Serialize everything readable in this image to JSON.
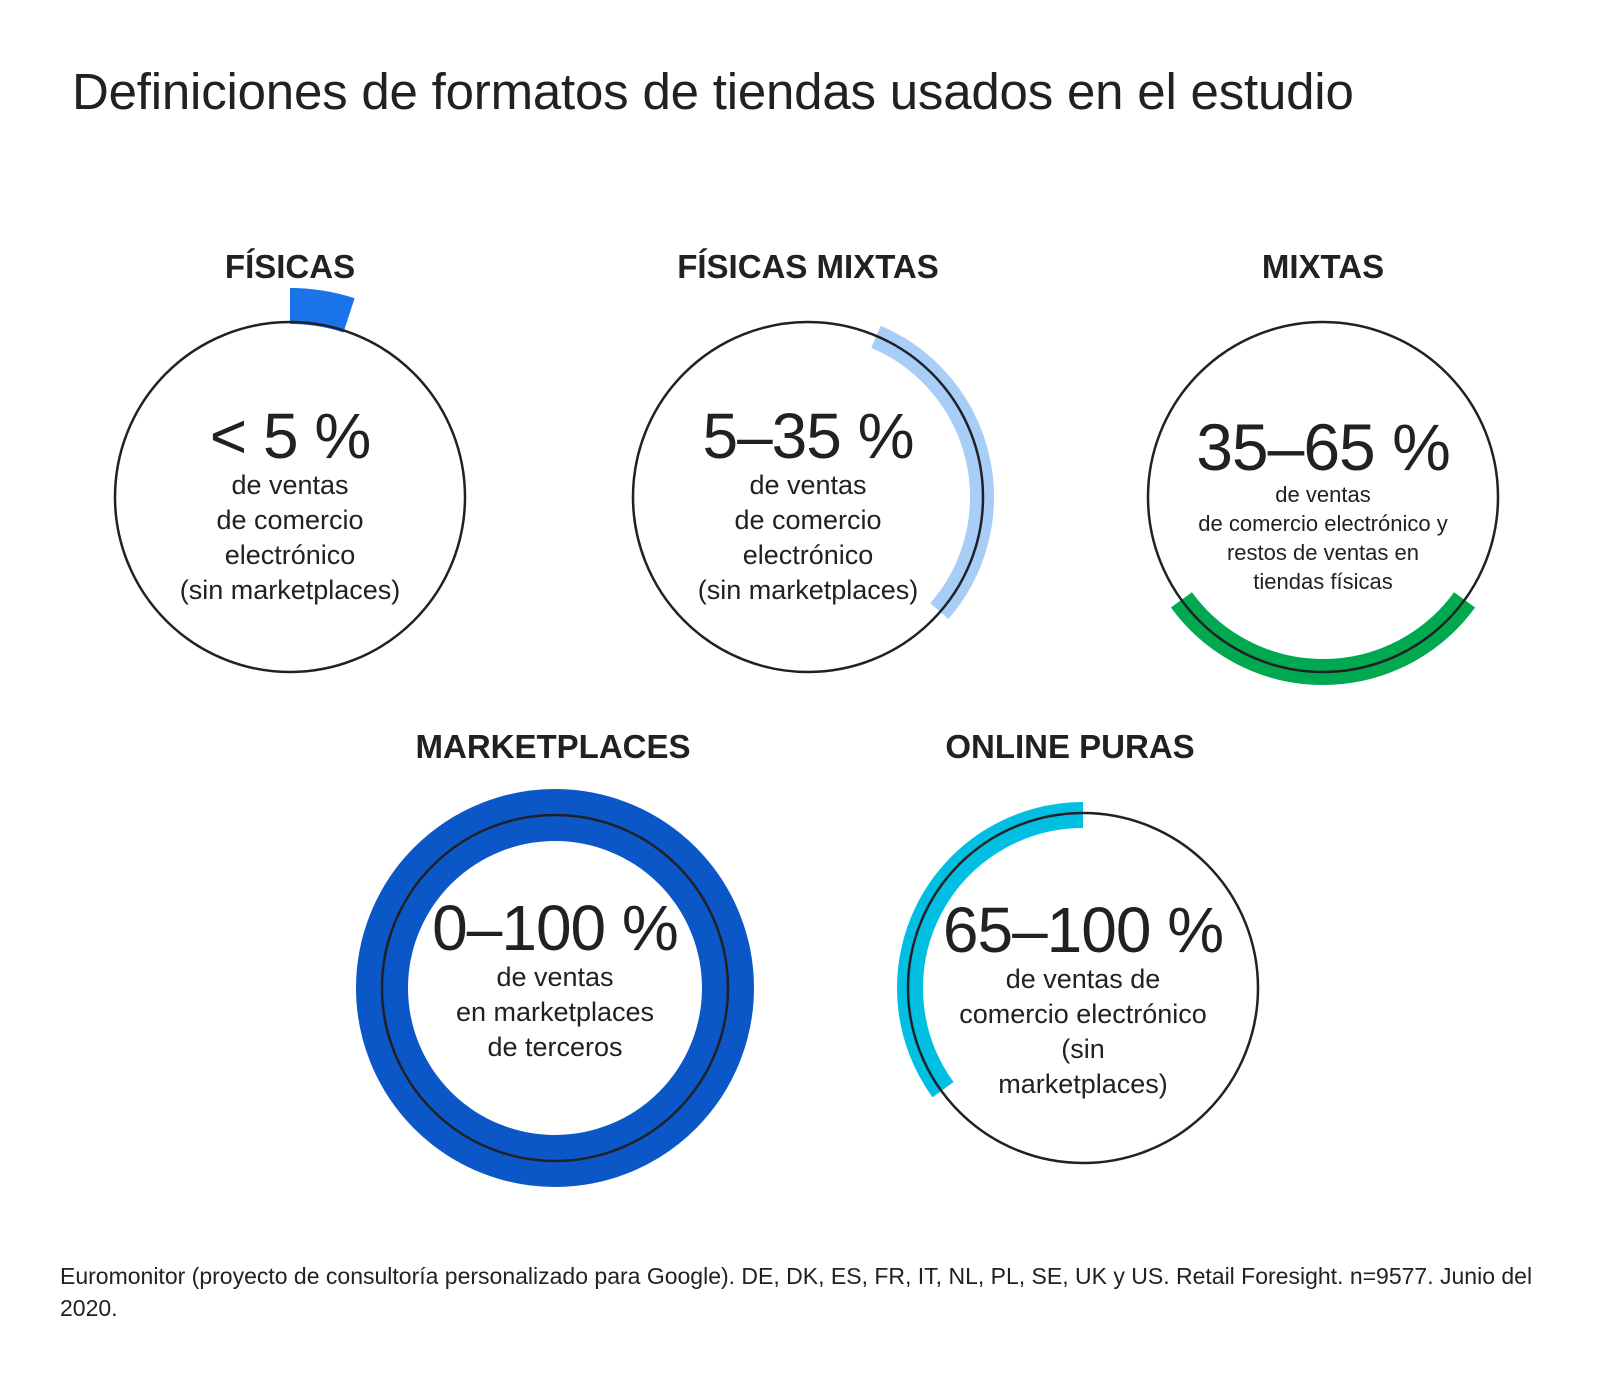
{
  "title": "Definiciones de formatos de tiendas usados en el estudio",
  "formats": [
    {
      "name": "FÍSICAS",
      "range": "< 5 %",
      "description": [
        "de ventas",
        "de comercio",
        "electrónico",
        "(sin marketplaces)"
      ],
      "color": "#1a73e8",
      "arc_fraction": 0.05
    },
    {
      "name": "FÍSICAS MIXTAS",
      "range": "5–35 %",
      "description": [
        "de ventas",
        "de comercio",
        "electrónico",
        "(sin marketplaces)"
      ],
      "color": "#a8cdf7",
      "arc_fraction": 0.3
    },
    {
      "name": "MIXTAS",
      "range": "35–65 %",
      "description": [
        "de ventas",
        "de comercio electrónico y",
        "restos de ventas en",
        "tiendas físicas"
      ],
      "color": "#00a94f",
      "arc_fraction": 0.3
    },
    {
      "name": "MARKETPLACES",
      "range": "0–100 %",
      "description": [
        "de ventas",
        "en marketplaces",
        "de terceros"
      ],
      "color": "#0b57c7",
      "arc_fraction": 1.0
    },
    {
      "name": "ONLINE PURAS",
      "range": "65–100 %",
      "description": [
        "de ventas de",
        "comercio electrónico",
        "(sin",
        "marketplaces)"
      ],
      "color": "#00bfe3",
      "arc_fraction": 0.35
    }
  ],
  "source": "Euromonitor (proyecto de consultoría personalizado para Google). DE, DK, ES, FR, IT, NL, PL, SE, UK y US. Retail Foresight. n=9577. Junio del 2020."
}
